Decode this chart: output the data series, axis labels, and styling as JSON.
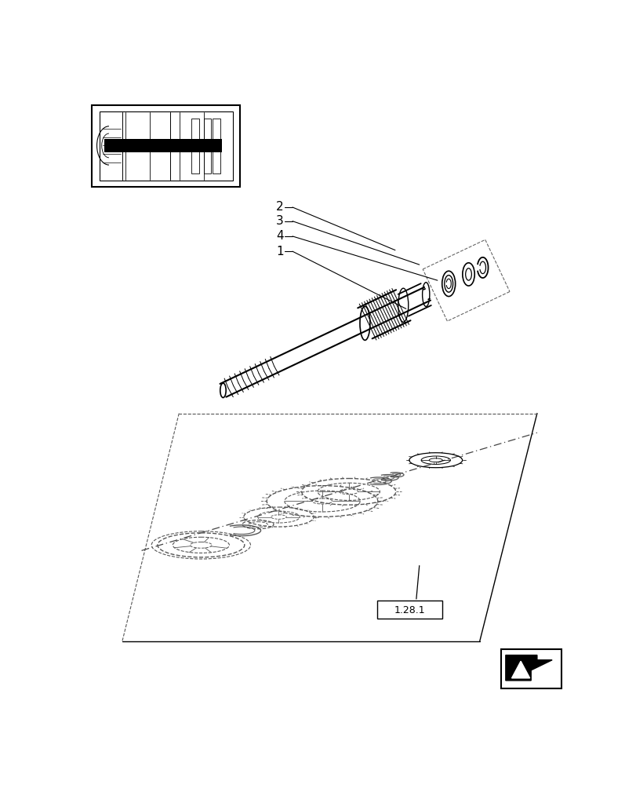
{
  "bg_color": "#ffffff",
  "line_color": "#000000",
  "ref_box_label": "1.28.1"
}
